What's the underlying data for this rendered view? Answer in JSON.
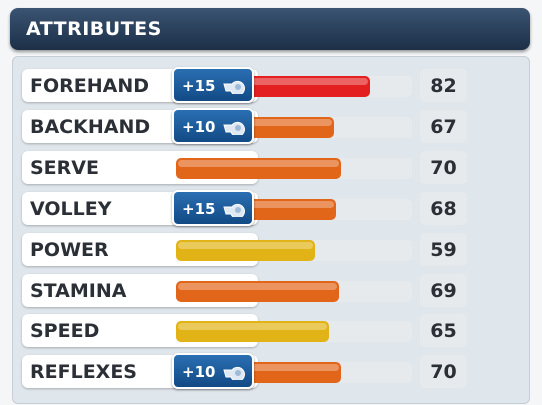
{
  "panel": {
    "title": "ATTRIBUTES"
  },
  "attributes": [
    {
      "name": "FOREHAND",
      "value": 82,
      "color": "#e3201f",
      "boost": "+15"
    },
    {
      "name": "BACKHAND",
      "value": 67,
      "color": "#e2661a",
      "boost": "+10"
    },
    {
      "name": "SERVE",
      "value": 70,
      "color": "#e2661a"
    },
    {
      "name": "VOLLEY",
      "value": 68,
      "color": "#e2661a",
      "boost": "+15"
    },
    {
      "name": "POWER",
      "value": 59,
      "color": "#e2b316"
    },
    {
      "name": "STAMINA",
      "value": 69,
      "color": "#e2661a"
    },
    {
      "name": "SPEED",
      "value": 65,
      "color": "#e2b316"
    },
    {
      "name": "REFLEXES",
      "value": 70,
      "color": "#e2661a",
      "boost": "+10"
    }
  ]
}
